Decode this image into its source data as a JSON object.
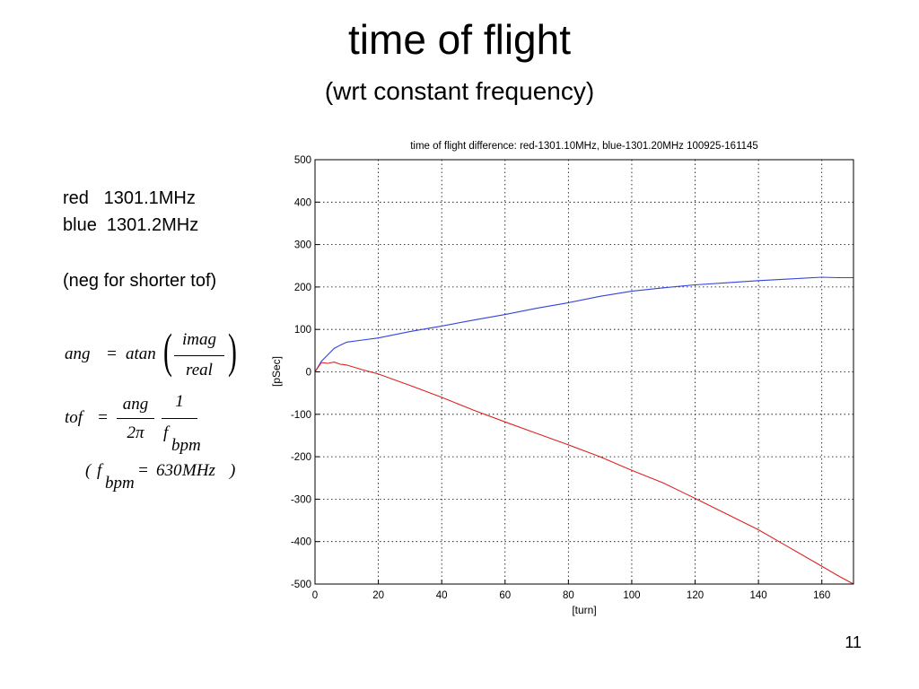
{
  "slide": {
    "title": "time of flight",
    "subtitle": "(wrt constant frequency)",
    "number": "11"
  },
  "info": {
    "red_line": "red   1301.1MHz",
    "blue_line": "blue  1301.2MHz",
    "note": "(neg for shorter tof)"
  },
  "formulas": {
    "ang_lhs": "ang",
    "eq": "=",
    "atan": "atan",
    "imag": "imag",
    "real": "real",
    "tof_lhs": "tof",
    "ang_num": "ang",
    "two_pi": "2π",
    "one": "1",
    "f": "f",
    "bpm": "bpm",
    "open_paren": "(",
    "close_paren": ")",
    "value": "630",
    "unit": "MHz"
  },
  "chart_data": {
    "type": "line",
    "title": "time of flight difference:  red-1301.10MHz, blue-1301.20MHz   100925-161145",
    "xlabel": "[turn]",
    "ylabel": "[pSec]",
    "xlim": [
      0,
      170
    ],
    "ylim": [
      -500,
      500
    ],
    "xticks": [
      0,
      20,
      40,
      60,
      80,
      100,
      120,
      140,
      160
    ],
    "yticks": [
      500,
      400,
      300,
      200,
      100,
      0,
      -100,
      -200,
      -300,
      -400,
      -500
    ],
    "grid": true,
    "series": [
      {
        "color": "#3344dd",
        "x": [
          0,
          2,
          4,
          6,
          8,
          10,
          15,
          20,
          30,
          40,
          50,
          60,
          70,
          80,
          90,
          100,
          110,
          120,
          130,
          140,
          150,
          160,
          165,
          170
        ],
        "y": [
          0,
          25,
          40,
          55,
          63,
          70,
          75,
          80,
          95,
          108,
          122,
          135,
          150,
          163,
          178,
          190,
          198,
          205,
          210,
          215,
          219,
          223,
          222,
          222
        ]
      },
      {
        "color": "#dd2222",
        "x": [
          0,
          2,
          4,
          6,
          8,
          10,
          15,
          20,
          30,
          40,
          50,
          60,
          70,
          80,
          90,
          100,
          110,
          120,
          130,
          140,
          150,
          160,
          165,
          170
        ],
        "y": [
          0,
          22,
          20,
          23,
          18,
          16,
          5,
          -5,
          -32,
          -60,
          -90,
          -118,
          -145,
          -172,
          -200,
          -232,
          -262,
          -298,
          -335,
          -372,
          -415,
          -458,
          -480,
          -500
        ]
      }
    ]
  }
}
